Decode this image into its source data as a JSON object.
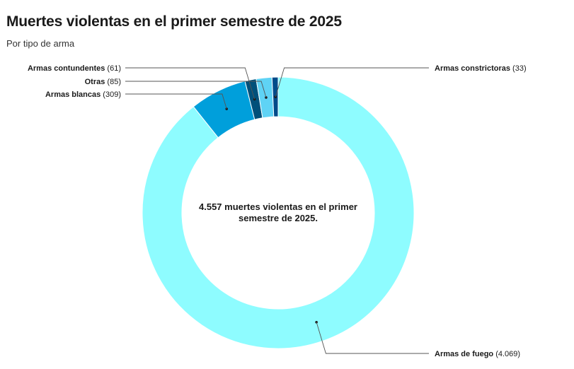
{
  "title": "Muertes violentas en el primer semestre de 2025",
  "subtitle": "Por tipo de arma",
  "center_text": "4.557 muertes violentas en el primer semestre de 2025.",
  "chart_data": {
    "type": "pie",
    "donut": true,
    "title": "Muertes violentas en el primer semestre de 2025",
    "subtitle": "Por tipo de arma",
    "total": 4557,
    "slices": [
      {
        "name": "Armas de fuego",
        "value": 4069,
        "value_label": "4.069",
        "color": "#8efcff"
      },
      {
        "name": "Armas blancas",
        "value": 309,
        "value_label": "309",
        "color": "#009fdb"
      },
      {
        "name": "Armas contundentes",
        "value": 61,
        "value_label": "61",
        "color": "#00507a"
      },
      {
        "name": "Otras",
        "value": 85,
        "value_label": "85",
        "color": "#5fd3f5"
      },
      {
        "name": "Armas constrictoras",
        "value": 33,
        "value_label": "33",
        "color": "#004b8a"
      }
    ]
  }
}
